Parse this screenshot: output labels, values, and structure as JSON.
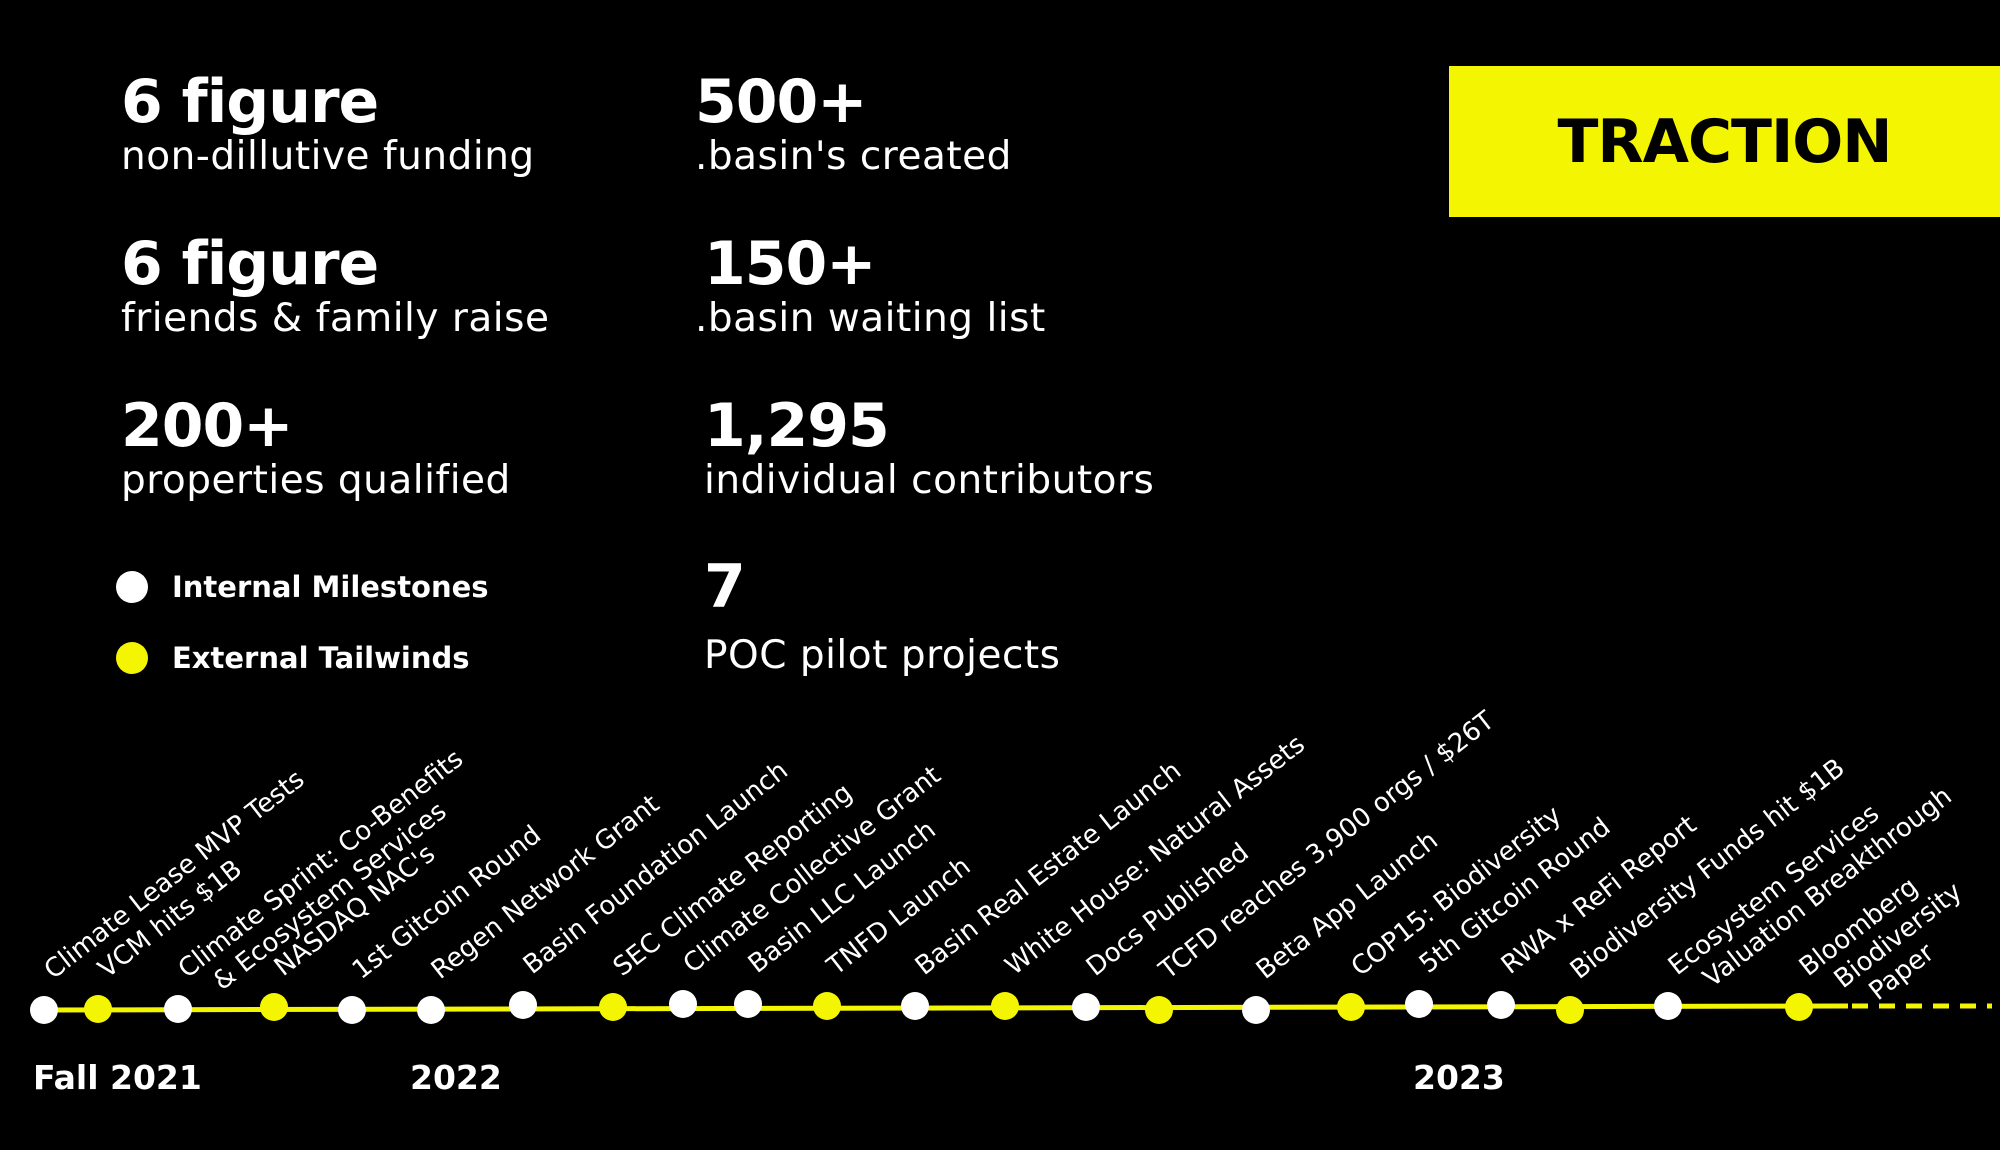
{
  "stats": [
    {
      "value": "6 figure",
      "label": "non-dillutive funding"
    },
    {
      "value": "6 figure",
      "label": "friends & family raise"
    },
    {
      "value": "200+",
      "label": "properties qualified"
    },
    {
      "value": "500+",
      "label": ".basin's created"
    },
    {
      "value": "150+",
      "label": ".basin waiting list"
    },
    {
      "value": "1,295",
      "label": "individual contributors"
    },
    {
      "value": "7",
      "label": "POC pilot projects"
    }
  ],
  "badge": {
    "label": "TRACTION"
  },
  "legend": {
    "internal": "Internal Milestones",
    "external": "External Tailwinds"
  },
  "colors": {
    "accent": "#f4f500",
    "background": "#000000",
    "internal": "#ffffff"
  },
  "years": [
    "Fall 2021",
    "2022",
    "2023"
  ],
  "milestones": [
    {
      "kind": "internal",
      "lines": [
        "Climate Lease MVP Tests"
      ]
    },
    {
      "kind": "external",
      "lines": [
        "VCM hits $1B"
      ]
    },
    {
      "kind": "internal",
      "lines": [
        "Climate Sprint: Co-Benefits",
        "& Ecosystem Services"
      ]
    },
    {
      "kind": "external",
      "lines": [
        "NASDAQ NAC's"
      ]
    },
    {
      "kind": "internal",
      "lines": [
        "1st Gitcoin Round"
      ]
    },
    {
      "kind": "internal",
      "lines": [
        "Regen Network Grant"
      ]
    },
    {
      "kind": "internal",
      "lines": [
        "Basin Foundation Launch"
      ]
    },
    {
      "kind": "external",
      "lines": [
        "SEC Climate Reporting"
      ]
    },
    {
      "kind": "internal",
      "lines": [
        "Climate Collective Grant"
      ]
    },
    {
      "kind": "internal",
      "lines": [
        "Basin LLC Launch"
      ]
    },
    {
      "kind": "external",
      "lines": [
        "TNFD Launch"
      ]
    },
    {
      "kind": "internal",
      "lines": [
        "Basin Real Estate Launch"
      ]
    },
    {
      "kind": "external",
      "lines": [
        "White House: Natural Assets"
      ]
    },
    {
      "kind": "internal",
      "lines": [
        "Docs Published"
      ]
    },
    {
      "kind": "external",
      "lines": [
        "TCFD reaches 3,900 orgs / $26T"
      ]
    },
    {
      "kind": "internal",
      "lines": [
        "Beta App Launch"
      ]
    },
    {
      "kind": "external",
      "lines": [
        "COP15: Biodiversity"
      ]
    },
    {
      "kind": "internal",
      "lines": [
        "5th Gitcoin Round"
      ]
    },
    {
      "kind": "internal",
      "lines": [
        "RWA x ReFi Report"
      ]
    },
    {
      "kind": "external",
      "lines": [
        "Biodiversity Funds hit $1B"
      ]
    },
    {
      "kind": "internal",
      "lines": [
        "Ecosystem Services",
        "Valuation Breakthrough"
      ]
    },
    {
      "kind": "external",
      "lines": [
        "Bloomberg",
        "Biodiversity",
        "Paper"
      ]
    }
  ]
}
